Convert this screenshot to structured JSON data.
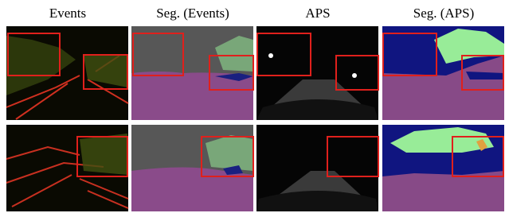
{
  "headers": [
    "Events",
    "Seg. (Events)",
    "APS",
    "Seg. (APS)"
  ]
}
